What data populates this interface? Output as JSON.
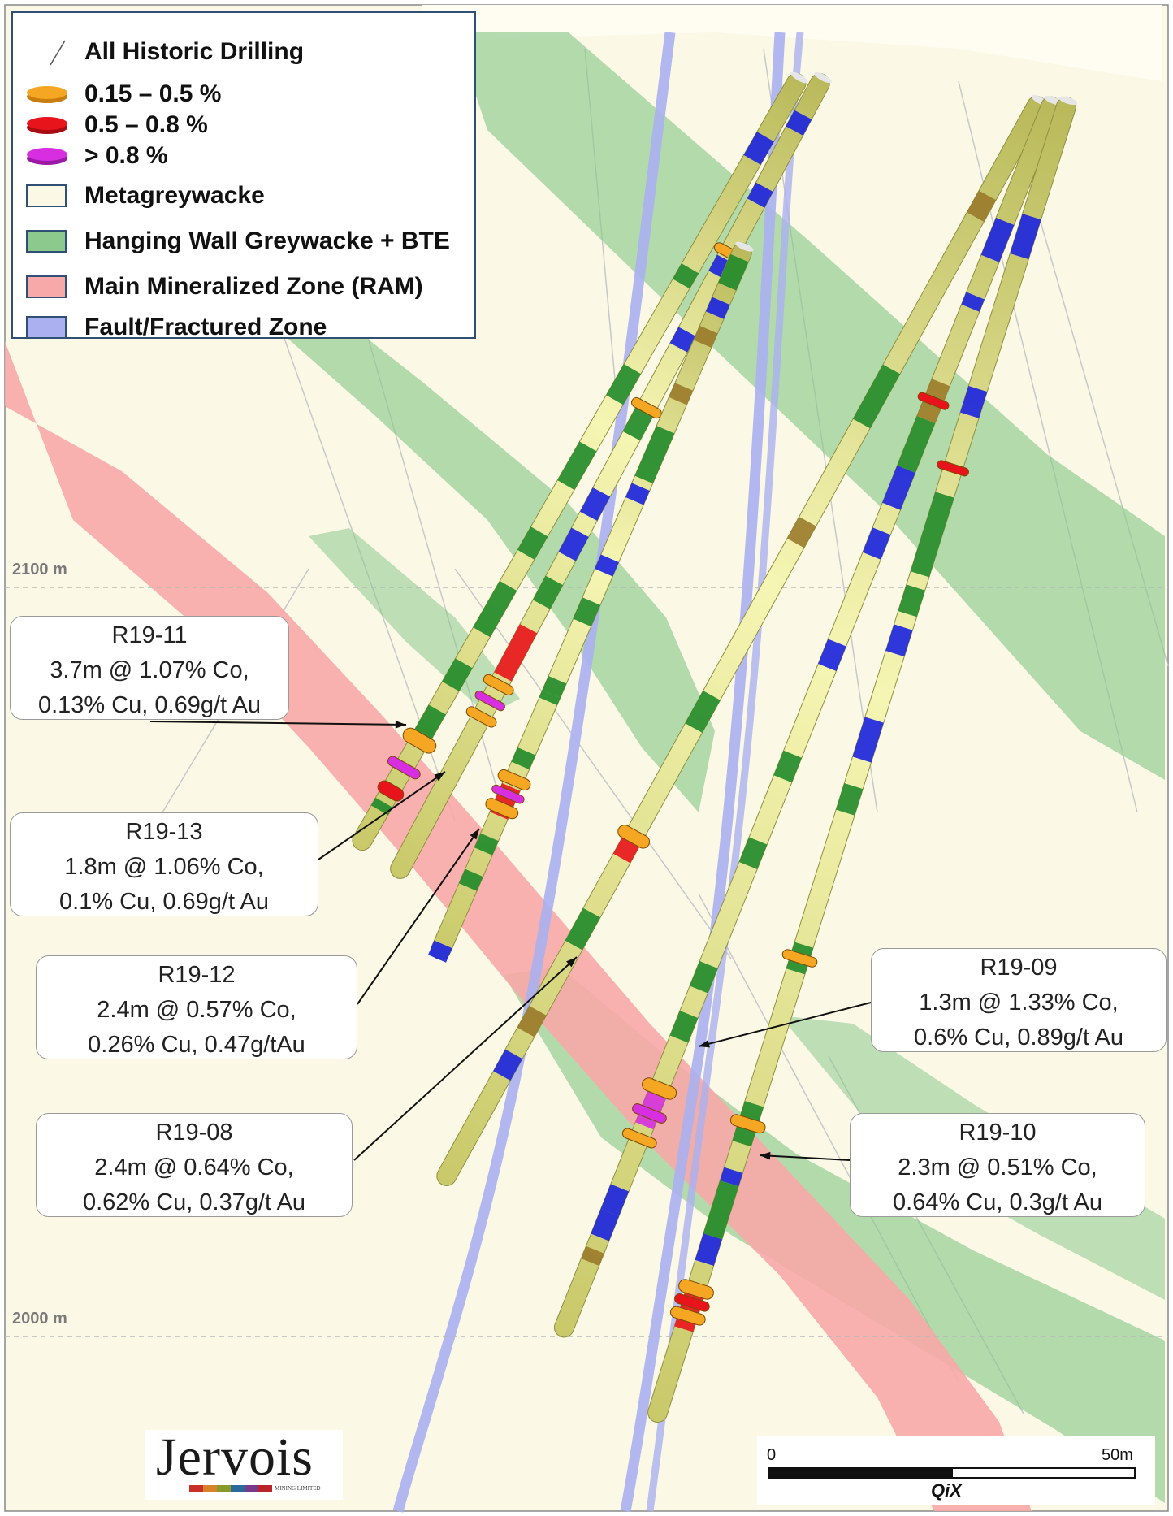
{
  "legend": {
    "items": [
      {
        "label": "All Historic Drilling",
        "icon": "historic-drill-line"
      },
      {
        "label": "0.15 – 0.5 %",
        "color": "#f5a623",
        "icon": "grade-disc"
      },
      {
        "label": "0.5 – 0.8 %",
        "color": "#e8141c",
        "icon": "grade-disc"
      },
      {
        "label": "> 0.8 %",
        "color": "#d62ee0",
        "icon": "grade-disc"
      },
      {
        "label": "Metagreywacke",
        "color": "#fbf8e6",
        "icon": "unit-box"
      },
      {
        "label": "Hanging Wall Greywacke + BTE",
        "color": "#8cc98c",
        "icon": "unit-box"
      },
      {
        "label": "Main Mineralized Zone (RAM)",
        "color": "#f7a8a8",
        "icon": "unit-box"
      },
      {
        "label": "Fault/Fractured Zone",
        "color": "#aab0f0",
        "icon": "unit-box"
      }
    ]
  },
  "elevations": [
    "2100 m",
    "2000 m"
  ],
  "callouts": [
    {
      "hole": "R19-11",
      "line1": "3.7m @ 1.07% Co,",
      "line2": "0.13% Cu, 0.69g/t Au"
    },
    {
      "hole": "R19-13",
      "line1": "1.8m @ 1.06% Co,",
      "line2": "0.1% Cu, 0.69g/t Au"
    },
    {
      "hole": "R19-12",
      "line1": "2.4m @ 0.57% Co,",
      "line2": "0.26% Cu, 0.47g/tAu"
    },
    {
      "hole": "R19-08",
      "line1": "2.4m @ 0.64% Co,",
      "line2": "0.62% Cu, 0.37g/t Au"
    },
    {
      "hole": "R19-09",
      "line1": "1.3m @ 1.33% Co,",
      "line2": "0.6% Cu, 0.89g/t Au"
    },
    {
      "hole": "R19-10",
      "line1": "2.3m @ 0.51% Co,",
      "line2": "0.64% Cu, 0.3g/t Au"
    }
  ],
  "logo": {
    "name": "Jervois",
    "subtitle": "MINING LIMITED"
  },
  "scale": {
    "start": "0",
    "end": "50m",
    "software": "QiX"
  },
  "colors": {
    "background": "#fbf8e6",
    "greywacke": "#8cc98c",
    "ram": "#f7a8a8",
    "fault": "#aab0f0",
    "drill_core": "#e8e88a",
    "drill_green": "#1f8a2a",
    "drill_blue": "#1a22e0",
    "drill_brown": "#9a7a2a"
  }
}
